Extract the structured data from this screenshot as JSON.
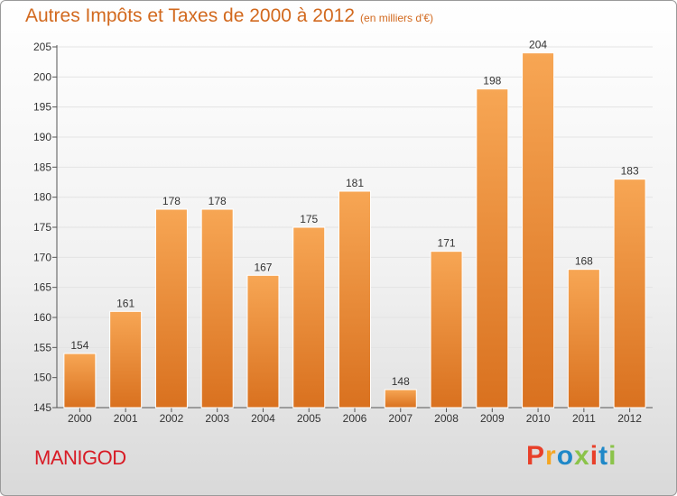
{
  "header": {
    "title": "Autres Impôts et Taxes de 2000 à 2012",
    "unit_note": "(en milliers d'€)"
  },
  "footer": {
    "place": "MANIGOD",
    "logo_text": "Proxiti"
  },
  "colors": {
    "title": "#d2691e",
    "place": "#d81b25",
    "bar_light": "#f7a654",
    "bar_dark": "#d9711f",
    "logo": [
      "#e8402a",
      "#f5a623",
      "#1f88c8",
      "#8bc34a",
      "#e8402a",
      "#1f88c8",
      "#8bc34a"
    ]
  },
  "chart_data": {
    "type": "bar",
    "title": "Autres Impôts et Taxes de 2000 à 2012",
    "subtitle": "(en milliers d'€)",
    "categories": [
      "2000",
      "2001",
      "2002",
      "2003",
      "2004",
      "2005",
      "2006",
      "2007",
      "2008",
      "2009",
      "2010",
      "2011",
      "2012"
    ],
    "values": [
      154,
      161,
      178,
      178,
      167,
      175,
      181,
      148,
      171,
      198,
      204,
      168,
      183
    ],
    "ylim": [
      145,
      205
    ],
    "yticks": [
      145,
      150,
      155,
      160,
      165,
      170,
      175,
      180,
      185,
      190,
      195,
      200,
      205
    ],
    "grid": true
  }
}
